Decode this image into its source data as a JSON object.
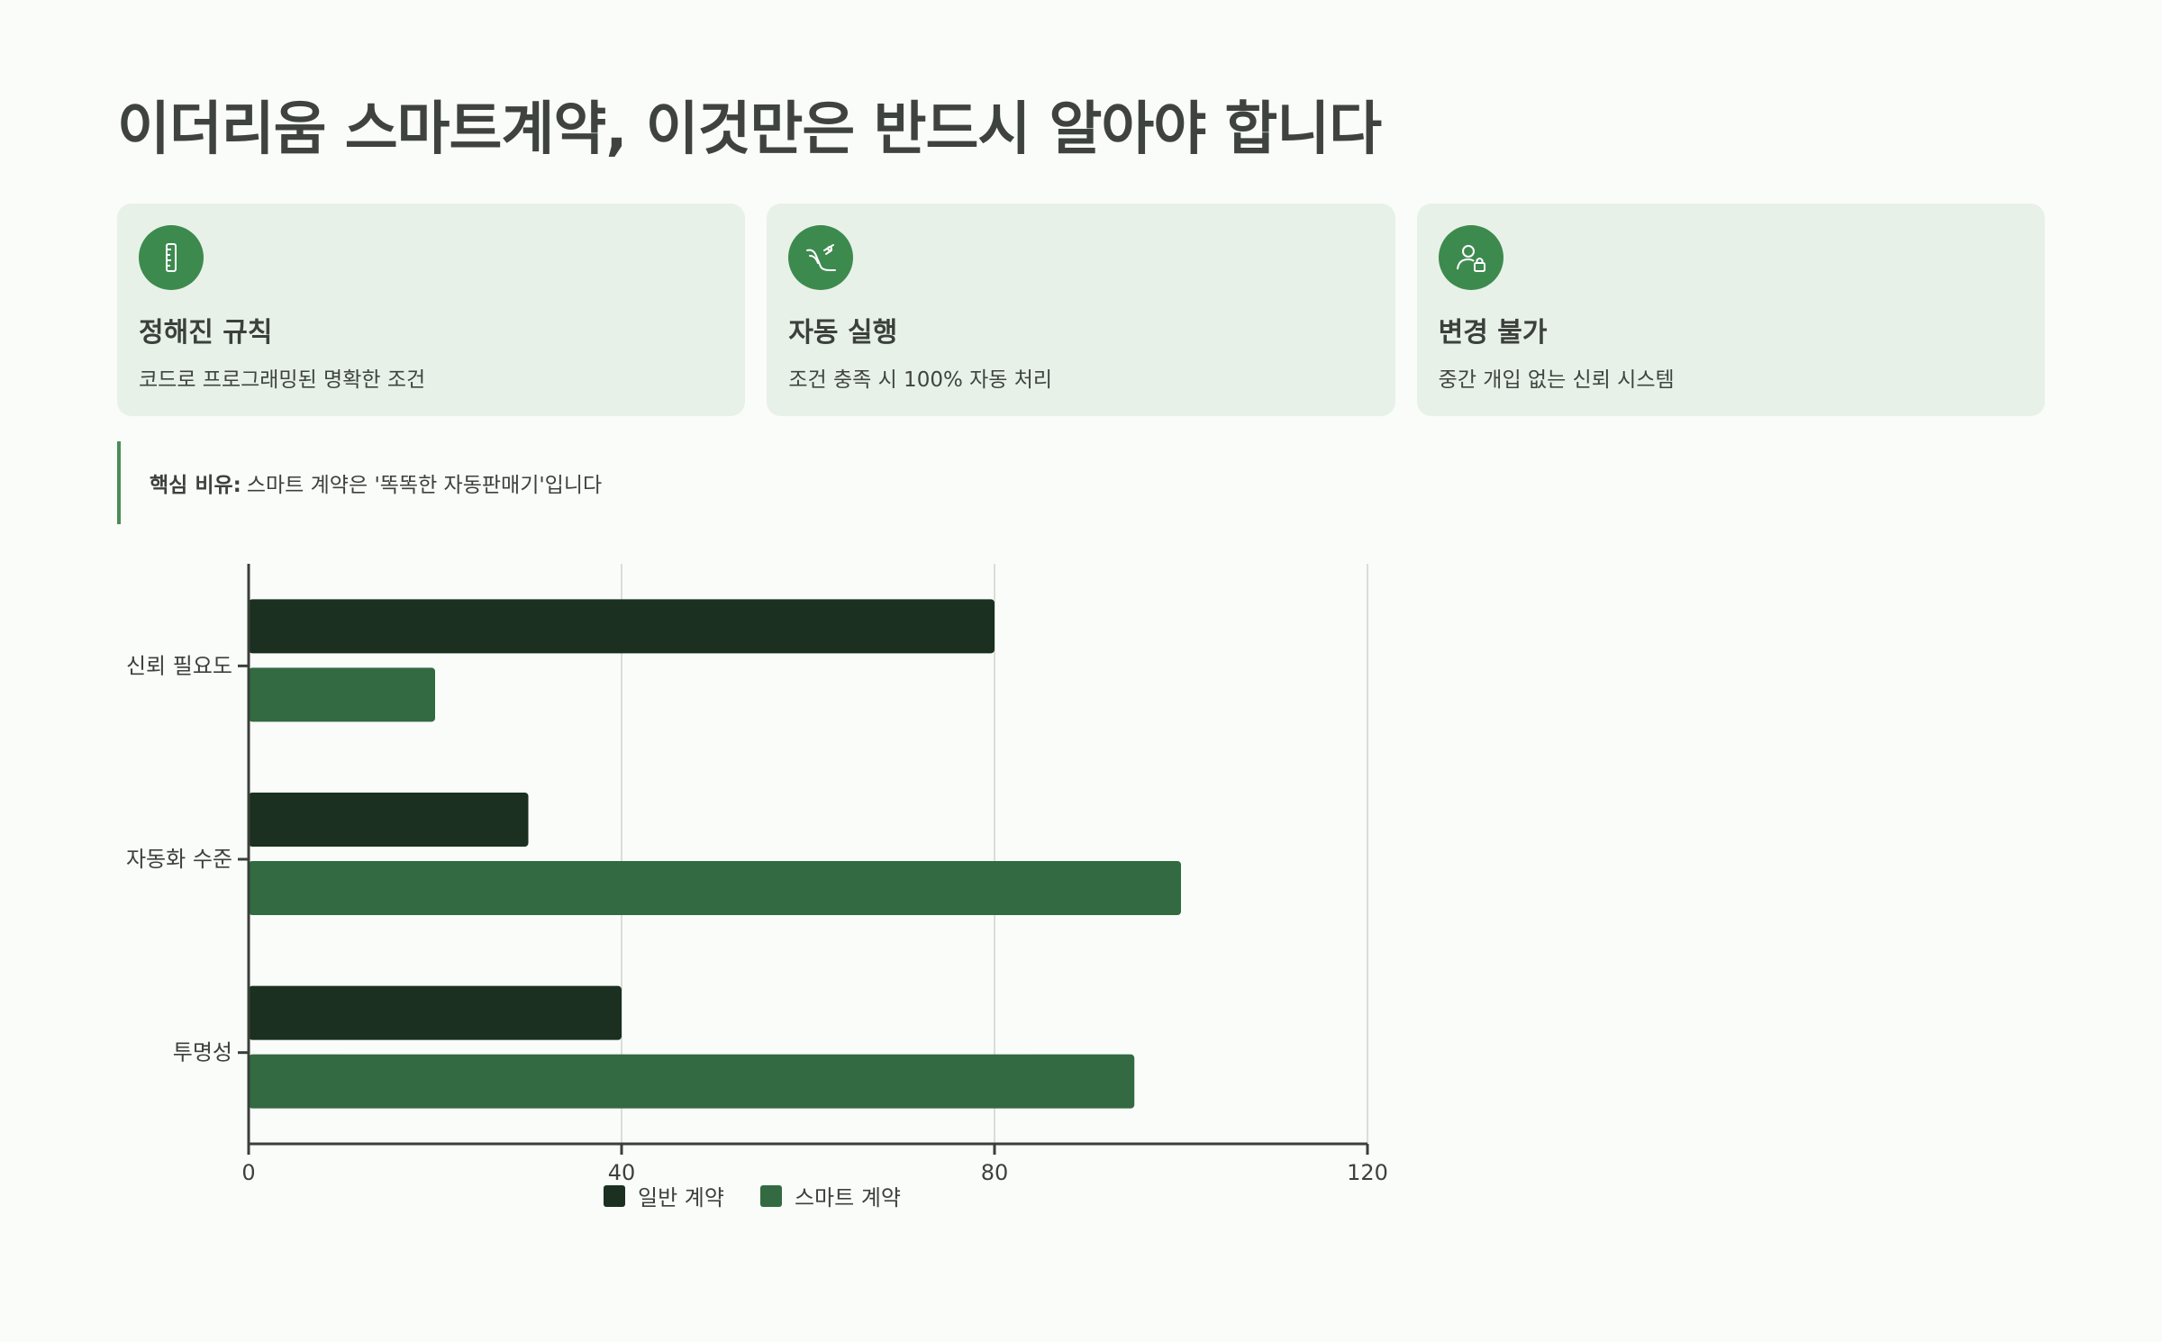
{
  "title": "이더리움 스마트계약, 이것만은 반드시 알아야 합니다",
  "cards": [
    {
      "icon": "ruler-icon",
      "title": "정해진 규칙",
      "desc": "코드로 프로그래밍된 명확한 조건"
    },
    {
      "icon": "auto-execute-icon",
      "title": "자동 실행",
      "desc": "조건 충족 시 100% 자동 처리"
    },
    {
      "icon": "user-lock-icon",
      "title": "변경 불가",
      "desc": "중간 개입 없는 신뢰 시스템"
    }
  ],
  "callout": {
    "label": "핵심 비유:",
    "text": "스마트 계약은 '똑똑한 자동판매기'입니다"
  },
  "colors": {
    "accent": "#3d8a4f",
    "card_bg": "#e8f1e7",
    "series_regular": "#1b3020",
    "series_smart": "#336a41"
  },
  "chart_data": {
    "type": "bar",
    "orientation": "horizontal",
    "categories": [
      "신뢰 필요도",
      "자동화 수준",
      "투명성"
    ],
    "series": [
      {
        "name": "일반 계약",
        "values": [
          80,
          30,
          40
        ],
        "color": "#1b3020"
      },
      {
        "name": "스마트 계약",
        "values": [
          20,
          100,
          95
        ],
        "color": "#336a41"
      }
    ],
    "xlim": [
      0,
      120
    ],
    "xticks": [
      "0",
      "40",
      "80",
      "120"
    ],
    "grid": true,
    "legend": "bottom"
  }
}
